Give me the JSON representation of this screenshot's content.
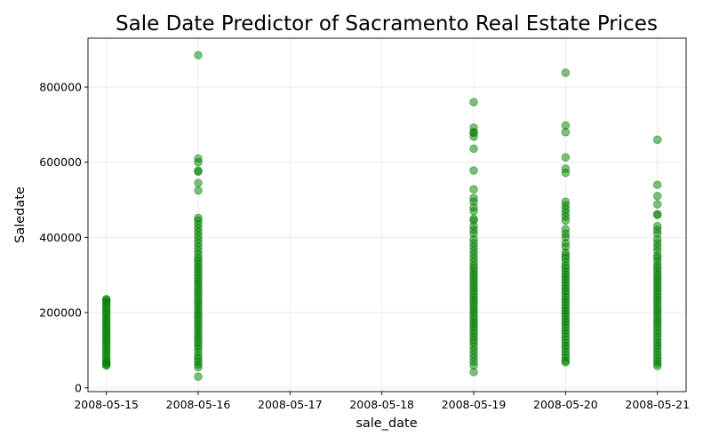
{
  "chart_data": {
    "type": "scatter",
    "title": "Sale Date Predictor of Sacramento Real Estate Prices",
    "xlabel": "sale_date",
    "ylabel": "Saledate",
    "x_ticks": [
      "2008-05-15",
      "2008-05-16",
      "2008-05-17",
      "2008-05-18",
      "2008-05-19",
      "2008-05-20",
      "2008-05-21"
    ],
    "y_ticks": [
      0,
      200000,
      400000,
      600000,
      800000
    ],
    "xlim": [
      "2008-05-14 19:12",
      "2008-05-21 07:30"
    ],
    "ylim": [
      -10000,
      930000
    ],
    "grid": true,
    "color": "#008000",
    "series": [
      {
        "x": "2008-05-15",
        "values": [
          59000,
          62000,
          65000,
          68000,
          72000,
          78000,
          85000,
          92000,
          98000,
          105000,
          112000,
          118000,
          124000,
          130000,
          136000,
          142000,
          148000,
          154000,
          160000,
          166000,
          172000,
          178000,
          184000,
          190000,
          196000,
          202000,
          208000,
          214000,
          220000,
          226000,
          230000,
          234000,
          236000
        ]
      },
      {
        "x": "2008-05-16",
        "values": [
          30000,
          55000,
          62000,
          70000,
          78000,
          85000,
          95000,
          105000,
          112000,
          120000,
          128000,
          135000,
          142000,
          150000,
          158000,
          165000,
          172000,
          180000,
          188000,
          195000,
          202000,
          210000,
          218000,
          225000,
          232000,
          240000,
          248000,
          255000,
          262000,
          270000,
          278000,
          285000,
          292000,
          300000,
          308000,
          315000,
          322000,
          330000,
          338000,
          345000,
          355000,
          365000,
          375000,
          385000,
          395000,
          405000,
          415000,
          425000,
          435000,
          445000,
          452000,
          525000,
          545000,
          575000,
          578000,
          600000,
          610000,
          885000
        ]
      },
      {
        "x": "2008-05-19",
        "values": [
          42000,
          60000,
          70000,
          80000,
          90000,
          100000,
          110000,
          120000,
          128000,
          136000,
          145000,
          152000,
          160000,
          168000,
          175000,
          182000,
          190000,
          198000,
          205000,
          212000,
          220000,
          228000,
          235000,
          242000,
          250000,
          258000,
          265000,
          272000,
          280000,
          288000,
          295000,
          302000,
          310000,
          318000,
          325000,
          335000,
          345000,
          355000,
          365000,
          375000,
          385000,
          395000,
          410000,
          420000,
          430000,
          445000,
          450000,
          470000,
          480000,
          495000,
          505000,
          528000,
          578000,
          636000,
          668000,
          678000,
          680000,
          692000,
          760000
        ]
      },
      {
        "x": "2008-05-20",
        "values": [
          68000,
          72000,
          80000,
          88000,
          96000,
          105000,
          112000,
          120000,
          128000,
          136000,
          145000,
          152000,
          160000,
          168000,
          175000,
          182000,
          190000,
          198000,
          205000,
          212000,
          220000,
          228000,
          235000,
          242000,
          250000,
          258000,
          265000,
          272000,
          280000,
          288000,
          295000,
          302000,
          310000,
          318000,
          325000,
          335000,
          345000,
          352000,
          360000,
          375000,
          385000,
          400000,
          410000,
          422000,
          445000,
          455000,
          465000,
          475000,
          485000,
          495000,
          572000,
          583000,
          613000,
          680000,
          698000,
          838000
        ]
      },
      {
        "x": "2008-05-21",
        "values": [
          58000,
          65000,
          72000,
          80000,
          88000,
          96000,
          105000,
          112000,
          120000,
          128000,
          136000,
          145000,
          152000,
          160000,
          168000,
          175000,
          182000,
          190000,
          198000,
          205000,
          212000,
          220000,
          228000,
          235000,
          242000,
          250000,
          258000,
          265000,
          272000,
          280000,
          288000,
          295000,
          302000,
          310000,
          318000,
          325000,
          335000,
          345000,
          352000,
          365000,
          375000,
          385000,
          395000,
          410000,
          420000,
          430000,
          460000,
          462000,
          488000,
          510000,
          540000,
          660000
        ]
      }
    ]
  }
}
